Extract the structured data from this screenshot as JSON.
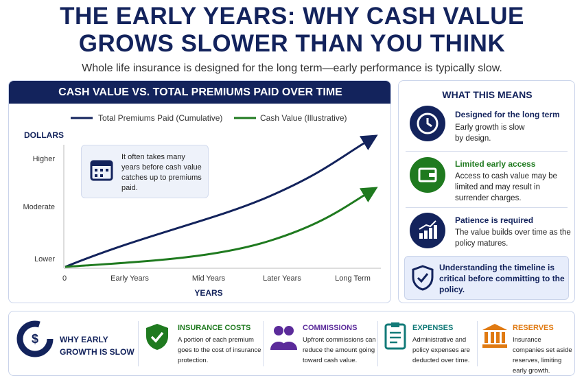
{
  "header": {
    "title_lines": [
      "THE EARLY YEARS: WHY CASH VALUE",
      "GROWS SLOWER THAN YOU THINK"
    ],
    "subtitle": "Whole life insurance is designed for the long term—early performance is typically slow."
  },
  "chart_panel": {
    "title": "CASH VALUE VS. TOTAL PREMIUMS PAID OVER TIME",
    "legend": [
      "Total Premiums Paid (Cumulative)",
      "Cash Value (Illustrative)"
    ],
    "y_axis_title": "DOLLARS",
    "y_labels": [
      "Higher",
      "Moderate",
      "Lower"
    ],
    "x_labels": [
      "0",
      "Early Years",
      "Mid Years",
      "Later Years",
      "Long Term"
    ],
    "x_axis_title": "YEARS",
    "note": "It often takes many years before cash value catches up to premiums paid."
  },
  "side_panel": {
    "title": "WHAT THIS MEANS",
    "items": [
      {
        "heading": "Designed for the long term",
        "text": "Early growth is slow by design."
      },
      {
        "heading": "Limited early access",
        "text": "Access to cash value may be limited and may result in surrender charges."
      },
      {
        "heading": "Patience is required",
        "text": "The value builds over time as the policy matures."
      }
    ],
    "callout": "Understanding the timeline is critical before committing to the policy."
  },
  "bottom_panel": {
    "title": "WHY EARLY GROWTH IS SLOW",
    "sections": [
      {
        "heading": "INSURANCE COSTS",
        "text": "A portion of each premium goes to the cost of insurance protection."
      },
      {
        "heading": "COMMISSIONS",
        "text": "Upfront commissions can reduce the amount going toward cash value."
      },
      {
        "heading": "EXPENSES",
        "text": "Administrative and policy expenses are deducted over time."
      },
      {
        "heading": "RESERVES",
        "text": "Insurance companies set aside reserves, limiting early growth."
      }
    ]
  }
}
